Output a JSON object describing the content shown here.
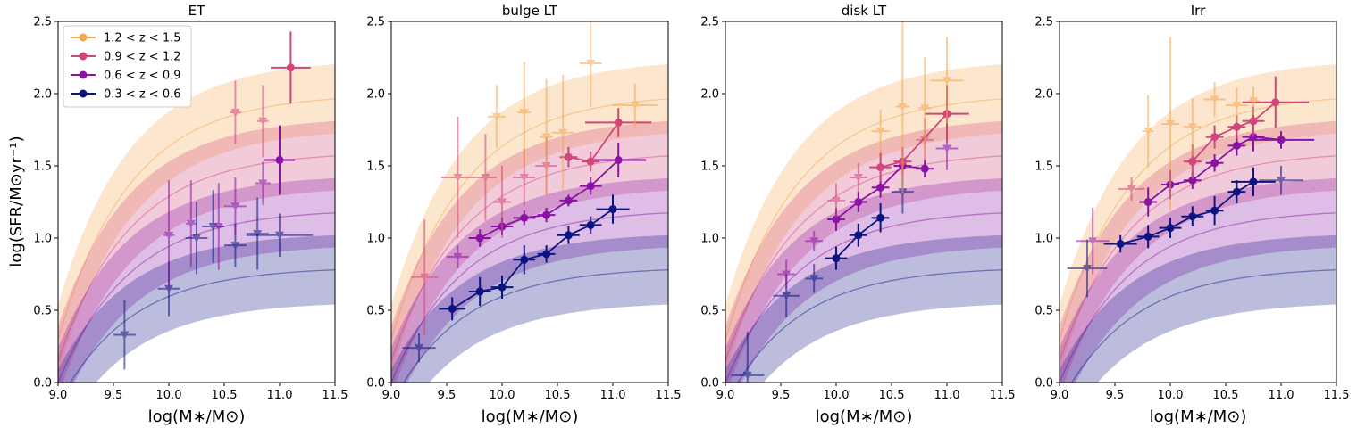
{
  "figure": {
    "ylabel": "log(SFR/M⊙yr⁻¹)",
    "legend": [
      {
        "label": "1.2 < z < 1.5",
        "color": "#f5a54d"
      },
      {
        "label": "0.9 < z < 1.2",
        "color": "#d1467a"
      },
      {
        "label": "0.6 < z < 0.9",
        "color": "#8a13a6"
      },
      {
        "label": "0.3 < z < 0.6",
        "color": "#0d1380"
      }
    ]
  },
  "chart_data": [
    {
      "type": "scatter",
      "title": "ET",
      "xlabel": "log(M∗/M⊙)",
      "xlim": [
        9.0,
        11.5
      ],
      "ylim": [
        0.0,
        2.5
      ],
      "xticks": [
        "9.0",
        "9.5",
        "10.0",
        "10.5",
        "11.0",
        "11.5"
      ],
      "yticks": [
        "0.0",
        "0.5",
        "1.0",
        "1.5",
        "2.0",
        "2.5"
      ],
      "series": [
        {
          "style": "bands"
        },
        {
          "name": "0.3 < z < 0.6",
          "color": "#0d1380",
          "marker": "triangle",
          "points": [
            [
              9.6,
              0.33,
              0.1,
              0.24
            ],
            [
              10.0,
              0.65,
              0.1,
              0.19
            ],
            [
              10.25,
              1.0,
              0.1,
              0.25
            ],
            [
              10.4,
              1.08,
              0.1,
              0.25
            ],
            [
              10.6,
              0.95,
              0.1,
              0.15
            ],
            [
              10.8,
              1.03,
              0.1,
              0.25
            ],
            [
              11.0,
              1.02,
              0.3,
              0.15
            ]
          ]
        },
        {
          "name": "0.6 < z < 0.9",
          "color": "#8a13a6",
          "marker": "triangle",
          "points": [
            [
              10.0,
              1.02,
              0.05,
              0.38
            ],
            [
              10.2,
              1.1,
              0.05,
              0.3
            ],
            [
              10.45,
              1.08,
              0.05,
              0.3
            ],
            [
              10.6,
              1.22,
              0.1,
              0.2
            ],
            [
              10.85,
              1.38,
              0.07,
              0.15
            ]
          ],
          "connected_points": [
            [
              11.0,
              1.54,
              0.14,
              0.24
            ]
          ]
        },
        {
          "name": "0.9 < z < 1.2",
          "color": "#d1467a",
          "marker": "triangle",
          "points": [
            [
              10.6,
              1.87,
              0.05,
              0.22
            ],
            [
              10.85,
              1.81,
              0.05,
              0.25
            ]
          ],
          "connected_points": [
            [
              11.1,
              2.18,
              0.18,
              0.25
            ]
          ]
        },
        {
          "name": "1.2 < z < 1.5",
          "color": "#f5a54d",
          "marker": "triangle",
          "points": []
        }
      ]
    },
    {
      "type": "line",
      "title": "bulge LT",
      "xlabel": "log(M∗/M⊙)",
      "xlim": [
        9.0,
        11.5
      ],
      "ylim": [
        0.0,
        2.5
      ],
      "xticks": [
        "9.0",
        "9.5",
        "10.0",
        "10.5",
        "11.0",
        "11.5"
      ],
      "yticks": [
        "0.0",
        "0.5",
        "1.0",
        "1.5",
        "2.0",
        "2.5"
      ],
      "series": [
        {
          "style": "bands"
        },
        {
          "name": "0.3 < z < 0.6",
          "color": "#0d1380",
          "marker": "triangle",
          "points": [
            [
              9.25,
              0.24,
              0.15,
              0.1
            ]
          ],
          "connected_points": [
            [
              9.55,
              0.51,
              0.12,
              0.08
            ],
            [
              9.8,
              0.63,
              0.1,
              0.1
            ],
            [
              10.0,
              0.66,
              0.1,
              0.08
            ],
            [
              10.2,
              0.85,
              0.1,
              0.1
            ],
            [
              10.4,
              0.89,
              0.08,
              0.06
            ],
            [
              10.6,
              1.02,
              0.1,
              0.06
            ],
            [
              10.8,
              1.09,
              0.1,
              0.06
            ],
            [
              11.0,
              1.2,
              0.15,
              0.1
            ]
          ]
        },
        {
          "name": "0.6 < z < 0.9",
          "color": "#8a13a6",
          "marker": "triangle",
          "points": [
            [
              9.6,
              0.87,
              0.1,
              0.08
            ]
          ],
          "connected_points": [
            [
              9.8,
              1.0,
              0.1,
              0.06
            ],
            [
              10.0,
              1.08,
              0.1,
              0.06
            ],
            [
              10.2,
              1.14,
              0.1,
              0.05
            ],
            [
              10.4,
              1.16,
              0.08,
              0.05
            ],
            [
              10.6,
              1.26,
              0.08,
              0.04
            ],
            [
              10.8,
              1.36,
              0.1,
              0.06
            ],
            [
              11.05,
              1.54,
              0.25,
              0.12
            ]
          ]
        },
        {
          "name": "0.9 < z < 1.2",
          "color": "#d1467a",
          "marker": "triangle",
          "points": [
            [
              9.3,
              0.73,
              0.12,
              0.4
            ],
            [
              9.6,
              1.42,
              0.15,
              0.42
            ],
            [
              9.85,
              1.42,
              0.1,
              0.3
            ],
            [
              10.0,
              1.25,
              0.08,
              0.25
            ],
            [
              10.2,
              1.42,
              0.1,
              0.2
            ],
            [
              10.4,
              1.5,
              0.1,
              0.2
            ]
          ],
          "connected_points": [
            [
              10.6,
              1.56,
              0.08,
              0.07
            ],
            [
              10.8,
              1.53,
              0.08,
              0.07
            ],
            [
              11.05,
              1.8,
              0.3,
              0.1
            ]
          ]
        },
        {
          "name": "1.2 < z < 1.5",
          "color": "#f5a54d",
          "marker": "triangle",
          "points": [
            [
              9.95,
              1.84,
              0.08,
              0.22
            ],
            [
              10.2,
              1.87,
              0.06,
              0.35
            ],
            [
              10.4,
              1.7,
              0.06,
              0.4
            ],
            [
              10.55,
              1.73,
              0.1,
              0.4
            ],
            [
              10.8,
              2.21,
              0.1,
              0.3
            ],
            [
              11.2,
              1.92,
              0.2,
              0.15
            ]
          ]
        }
      ]
    },
    {
      "type": "line",
      "title": "disk LT",
      "xlabel": "log(M∗/M⊙)",
      "xlim": [
        9.0,
        11.5
      ],
      "ylim": [
        0.0,
        2.5
      ],
      "xticks": [
        "9.0",
        "9.5",
        "10.0",
        "10.5",
        "11.0",
        "11.5"
      ],
      "yticks": [
        "0.0",
        "0.5",
        "1.0",
        "1.5",
        "2.0",
        "2.5"
      ],
      "series": [
        {
          "style": "bands"
        },
        {
          "name": "0.3 < z < 0.6",
          "color": "#0d1380",
          "marker": "triangle",
          "points": [
            [
              9.2,
              0.05,
              0.15,
              0.3
            ],
            [
              9.55,
              0.6,
              0.12,
              0.15
            ],
            [
              9.8,
              0.72,
              0.08,
              0.1
            ],
            [
              10.6,
              1.32,
              0.1,
              0.15
            ]
          ],
          "connected_points": [
            [
              10.0,
              0.86,
              0.1,
              0.08
            ],
            [
              10.2,
              1.02,
              0.08,
              0.08
            ],
            [
              10.4,
              1.14,
              0.08,
              0.1
            ]
          ]
        },
        {
          "name": "0.6 < z < 0.9",
          "color": "#8a13a6",
          "marker": "triangle",
          "points": [
            [
              9.55,
              0.75,
              0.08,
              0.1
            ],
            [
              9.8,
              0.98,
              0.08,
              0.07
            ],
            [
              11.0,
              1.62,
              0.1,
              0.15
            ]
          ],
          "connected_points": [
            [
              10.0,
              1.13,
              0.08,
              0.08
            ],
            [
              10.2,
              1.25,
              0.08,
              0.07
            ],
            [
              10.4,
              1.35,
              0.08,
              0.07
            ],
            [
              10.6,
              1.5,
              0.08,
              0.06
            ],
            [
              10.8,
              1.48,
              0.08,
              0.06
            ]
          ]
        },
        {
          "name": "0.9 < z < 1.2",
          "color": "#d1467a",
          "marker": "triangle",
          "points": [
            [
              10.0,
              1.26,
              0.08,
              0.12
            ],
            [
              10.2,
              1.42,
              0.08,
              0.1
            ],
            [
              10.8,
              1.68,
              0.08,
              0.15
            ]
          ],
          "connected_points": [
            [
              10.4,
              1.49,
              0.1,
              0.1
            ],
            [
              10.6,
              1.53,
              0.08,
              0.1
            ],
            [
              11.0,
              1.86,
              0.2,
              0.2
            ]
          ]
        },
        {
          "name": "1.2 < z < 1.5",
          "color": "#f5a54d",
          "marker": "triangle",
          "points": [
            [
              10.4,
              1.74,
              0.08,
              0.15
            ],
            [
              10.6,
              1.91,
              0.06,
              0.6
            ],
            [
              10.8,
              1.9,
              0.06,
              0.35
            ],
            [
              11.0,
              2.09,
              0.15,
              0.3
            ]
          ]
        }
      ]
    },
    {
      "type": "line",
      "title": "Irr",
      "xlabel": "log(M∗/M⊙)",
      "xlim": [
        9.0,
        11.5
      ],
      "ylim": [
        0.0,
        2.5
      ],
      "xticks": [
        "9.0",
        "9.5",
        "10.0",
        "10.5",
        "11.0",
        "11.5"
      ],
      "yticks": [
        "0.0",
        "0.5",
        "1.0",
        "1.5",
        "2.0",
        "2.5"
      ],
      "series": [
        {
          "style": "bands"
        },
        {
          "name": "0.3 < z < 0.6",
          "color": "#0d1380",
          "marker": "triangle",
          "points": [
            [
              9.25,
              0.79,
              0.18,
              0.2
            ],
            [
              11.0,
              1.4,
              0.2,
              0.1
            ]
          ],
          "connected_points": [
            [
              9.55,
              0.96,
              0.15,
              0.06
            ],
            [
              9.8,
              1.01,
              0.1,
              0.08
            ],
            [
              10.0,
              1.07,
              0.1,
              0.07
            ],
            [
              10.2,
              1.15,
              0.1,
              0.07
            ],
            [
              10.4,
              1.19,
              0.08,
              0.1
            ],
            [
              10.6,
              1.32,
              0.08,
              0.08
            ],
            [
              10.75,
              1.39,
              0.2,
              0.1
            ]
          ]
        },
        {
          "name": "0.6 < z < 0.9",
          "color": "#8a13a6",
          "marker": "triangle",
          "points": [
            [
              9.3,
              0.98,
              0.15,
              0.23
            ]
          ],
          "connected_points": [
            [
              9.8,
              1.25,
              0.08,
              0.1
            ],
            [
              10.0,
              1.37,
              0.08,
              0.1
            ],
            [
              10.2,
              1.4,
              0.08,
              0.06
            ],
            [
              10.4,
              1.52,
              0.08,
              0.06
            ],
            [
              10.6,
              1.64,
              0.08,
              0.07
            ],
            [
              10.75,
              1.7,
              0.1,
              0.1
            ],
            [
              11.0,
              1.68,
              0.3,
              0.06
            ]
          ]
        },
        {
          "name": "0.9 < z < 1.2",
          "color": "#d1467a",
          "marker": "triangle",
          "points": [
            [
              9.65,
              1.34,
              0.12,
              0.08
            ]
          ],
          "connected_points": [
            [
              10.2,
              1.53,
              0.08,
              0.12
            ],
            [
              10.4,
              1.7,
              0.08,
              0.08
            ],
            [
              10.6,
              1.77,
              0.08,
              0.08
            ],
            [
              10.75,
              1.81,
              0.1,
              0.1
            ],
            [
              10.95,
              1.94,
              0.3,
              0.18
            ]
          ]
        },
        {
          "name": "1.2 < z < 1.5",
          "color": "#f5a54d",
          "marker": "triangle",
          "points": [
            [
              9.8,
              1.74,
              0.05,
              0.25
            ],
            [
              10.0,
              1.79,
              0.08,
              0.6
            ],
            [
              10.2,
              1.77,
              0.08,
              0.2
            ],
            [
              10.4,
              1.96,
              0.1,
              0.12
            ],
            [
              10.6,
              1.92,
              0.1,
              0.12
            ],
            [
              10.75,
              1.95,
              0.05,
              0.1
            ]
          ]
        }
      ]
    }
  ]
}
